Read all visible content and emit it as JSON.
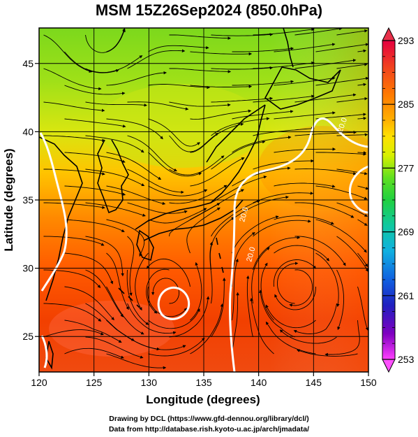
{
  "title": "MSM 15Z26Sep2024 (850.0hPa)",
  "map": {
    "xlabel": "Longitude (degrees)",
    "ylabel": "Latitude  (degrees)",
    "x_ticks": [
      "120",
      "125",
      "130",
      "135",
      "140",
      "145",
      "150"
    ],
    "x_tick_values": [
      120,
      125,
      130,
      135,
      140,
      145,
      150
    ],
    "y_ticks": [
      "25",
      "30",
      "35",
      "40",
      "45"
    ],
    "y_tick_values": [
      25,
      30,
      35,
      40,
      45
    ],
    "xlim": [
      120,
      150
    ],
    "ylim": [
      22.4,
      47.6
    ],
    "field": "temperature",
    "contour_label": "20.0",
    "contour_color": "#ffffff",
    "streamline_color": "#000000",
    "coastline_color": "#000000"
  },
  "colorbar": {
    "labels": [
      "293",
      "285",
      "277",
      "269",
      "261",
      "253"
    ],
    "values": [
      293,
      285,
      277,
      269,
      261,
      253
    ],
    "min": 253,
    "max": 293,
    "colors": [
      "#e40040",
      "#f04020",
      "#ff7a00",
      "#ffb000",
      "#ffe000",
      "#d8f000",
      "#60e020",
      "#20d040",
      "#10c8a0",
      "#10b0e0",
      "#1060e0",
      "#2020c0",
      "#8000c0",
      "#ff40ff"
    ]
  },
  "credits": {
    "line1": "Drawing by DCL (https://www.gfd-dennou.org/library/dcl/)",
    "line2": "Data from http://database.rish.kyoto-u.ac.jp/arch/jmadata/"
  }
}
